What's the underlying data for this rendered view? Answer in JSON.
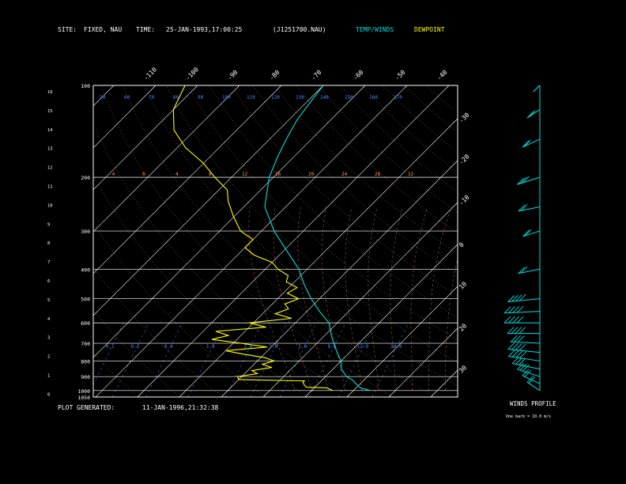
{
  "header": {
    "site_label": "SITE:",
    "site_value": "FIXED, NAU",
    "time_label": "TIME:",
    "time_value": "25-JAN-1993,17:00:25",
    "file_id": "(J1251700.NAU)",
    "legend_temp": "TEMP/WINDS",
    "legend_dew": "DEWPOINT"
  },
  "footer": {
    "generated_label": "PLOT GENERATED:",
    "generated_value": "11-JAN-1996,21:32:38"
  },
  "winds_panel": {
    "title": "WINDS PROFILE",
    "subtitle": "One barb = 10.0 m/s"
  },
  "colors": {
    "background": "#000000",
    "frame": "#ffffff",
    "isobar": "#ffffff",
    "isotherm": "#ffffff",
    "temperature": "#00e0e0",
    "dewpoint": "#ffff00",
    "dry_adiabat": "#ff9966",
    "moist_adiabat": "#ff9966",
    "mixing_ratio": "#4488ff",
    "winds": "#00e0e0"
  },
  "chart_data": {
    "type": "line",
    "diagram": "skew-T log-p",
    "pressure_ticks": [
      "100",
      "200",
      "300",
      "400",
      "500",
      "600",
      "700",
      "800",
      "900",
      "1000",
      "1050"
    ],
    "pressure_values": [
      100,
      200,
      300,
      400,
      500,
      600,
      700,
      800,
      900,
      1000,
      1050
    ],
    "height_ticks": [
      "16",
      "15",
      "14",
      "13",
      "12",
      "11",
      "10",
      "9",
      "8",
      "7",
      "6",
      "5",
      "4",
      "3",
      "2",
      "1",
      "0"
    ],
    "isotherm_top_labels": [
      "-110",
      "-100",
      "-90",
      "-80",
      "-70",
      "-60",
      "-50",
      "-40"
    ],
    "isotherm_right_labels": [
      "-30",
      "-20",
      "-10",
      "0",
      "10",
      "20",
      "30"
    ],
    "theta_labels": [
      "50",
      "60",
      "70",
      "80",
      "90",
      "100",
      "110",
      "120",
      "130",
      "140",
      "150",
      "160",
      "170"
    ],
    "mixing_ratio_labels": [
      {
        "text": "0.1",
        "t": -52
      },
      {
        "text": "0.2",
        "t": -46
      },
      {
        "text": "0.4",
        "t": -38
      },
      {
        "text": "1.0",
        "t": -28
      },
      {
        "text": "2.0",
        "t": -19
      },
      {
        "text": "3.0",
        "t": -13
      },
      {
        "text": "5.0",
        "t": -6
      },
      {
        "text": "8.0",
        "t": 1
      },
      {
        "text": "12.0",
        "t": 8
      },
      {
        "text": "20.0",
        "t": 16
      }
    ],
    "moist_labels": [
      "-4",
      "0",
      "4",
      "8",
      "12",
      "16",
      "20",
      "24",
      "28",
      "32"
    ],
    "temperature": [
      {
        "p": 1000,
        "t": 14
      },
      {
        "p": 980,
        "t": 11
      },
      {
        "p": 950,
        "t": 9
      },
      {
        "p": 920,
        "t": 7
      },
      {
        "p": 900,
        "t": 5
      },
      {
        "p": 850,
        "t": 2
      },
      {
        "p": 800,
        "t": 0
      },
      {
        "p": 750,
        "t": -3
      },
      {
        "p": 700,
        "t": -6
      },
      {
        "p": 650,
        "t": -9
      },
      {
        "p": 600,
        "t": -12
      },
      {
        "p": 550,
        "t": -17
      },
      {
        "p": 500,
        "t": -22
      },
      {
        "p": 450,
        "t": -27
      },
      {
        "p": 400,
        "t": -32
      },
      {
        "p": 350,
        "t": -39
      },
      {
        "p": 300,
        "t": -47
      },
      {
        "p": 250,
        "t": -55
      },
      {
        "p": 200,
        "t": -61
      },
      {
        "p": 170,
        "t": -64
      },
      {
        "p": 150,
        "t": -66
      },
      {
        "p": 130,
        "t": -68
      },
      {
        "p": 115,
        "t": -69
      },
      {
        "p": 100,
        "t": -70
      }
    ],
    "dewpoint": [
      {
        "p": 1000,
        "t": 5
      },
      {
        "p": 980,
        "t": 3
      },
      {
        "p": 975,
        "t": -2
      },
      {
        "p": 960,
        "t": -3
      },
      {
        "p": 940,
        "t": -4
      },
      {
        "p": 930,
        "t": -4
      },
      {
        "p": 920,
        "t": -20
      },
      {
        "p": 900,
        "t": -21
      },
      {
        "p": 880,
        "t": -17
      },
      {
        "p": 860,
        "t": -19
      },
      {
        "p": 840,
        "t": -15
      },
      {
        "p": 820,
        "t": -18
      },
      {
        "p": 800,
        "t": -16
      },
      {
        "p": 780,
        "t": -19
      },
      {
        "p": 760,
        "t": -25
      },
      {
        "p": 740,
        "t": -30
      },
      {
        "p": 720,
        "t": -21
      },
      {
        "p": 700,
        "t": -28
      },
      {
        "p": 680,
        "t": -36
      },
      {
        "p": 660,
        "t": -33
      },
      {
        "p": 640,
        "t": -37
      },
      {
        "p": 620,
        "t": -26
      },
      {
        "p": 600,
        "t": -31
      },
      {
        "p": 580,
        "t": -22
      },
      {
        "p": 560,
        "t": -27
      },
      {
        "p": 540,
        "t": -25
      },
      {
        "p": 520,
        "t": -27
      },
      {
        "p": 500,
        "t": -25
      },
      {
        "p": 480,
        "t": -29
      },
      {
        "p": 460,
        "t": -28
      },
      {
        "p": 440,
        "t": -32
      },
      {
        "p": 420,
        "t": -33
      },
      {
        "p": 400,
        "t": -37
      },
      {
        "p": 380,
        "t": -40
      },
      {
        "p": 360,
        "t": -46
      },
      {
        "p": 340,
        "t": -50
      },
      {
        "p": 320,
        "t": -50
      },
      {
        "p": 300,
        "t": -55
      },
      {
        "p": 270,
        "t": -60
      },
      {
        "p": 240,
        "t": -65
      },
      {
        "p": 220,
        "t": -68
      },
      {
        "p": 200,
        "t": -74
      },
      {
        "p": 180,
        "t": -80
      },
      {
        "p": 160,
        "t": -88
      },
      {
        "p": 140,
        "t": -95
      },
      {
        "p": 120,
        "t": -100
      },
      {
        "p": 100,
        "t": -103
      }
    ],
    "winds": [
      {
        "p": 1000,
        "dir": 320,
        "spd": 15
      },
      {
        "p": 950,
        "dir": 310,
        "spd": 20
      },
      {
        "p": 900,
        "dir": 300,
        "spd": 25
      },
      {
        "p": 850,
        "dir": 290,
        "spd": 30
      },
      {
        "p": 800,
        "dir": 285,
        "spd": 35
      },
      {
        "p": 750,
        "dir": 280,
        "spd": 35
      },
      {
        "p": 700,
        "dir": 275,
        "spd": 30
      },
      {
        "p": 650,
        "dir": 270,
        "spd": 35
      },
      {
        "p": 600,
        "dir": 270,
        "spd": 40
      },
      {
        "p": 550,
        "dir": 265,
        "spd": 40
      },
      {
        "p": 500,
        "dir": 260,
        "spd": 35
      },
      {
        "p": 400,
        "dir": 250,
        "spd": 20
      },
      {
        "p": 300,
        "dir": 240,
        "spd": 15
      },
      {
        "p": 250,
        "dir": 250,
        "spd": 20
      },
      {
        "p": 200,
        "dir": 240,
        "spd": 25
      },
      {
        "p": 150,
        "dir": 230,
        "spd": 20
      },
      {
        "p": 120,
        "dir": 220,
        "spd": 15
      },
      {
        "p": 100,
        "dir": 210,
        "spd": 5
      }
    ]
  }
}
